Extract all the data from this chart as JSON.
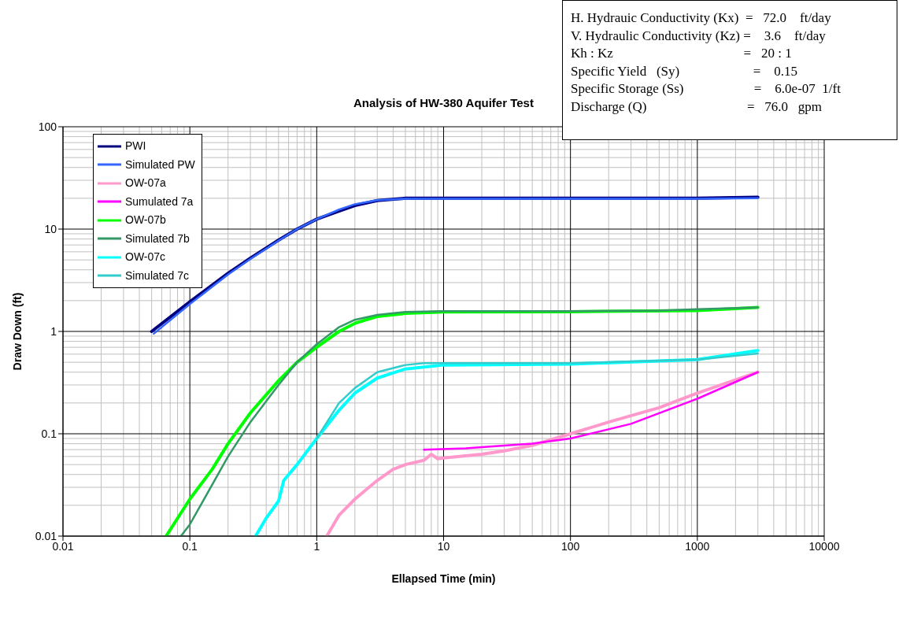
{
  "chart_data": {
    "type": "line",
    "title": "Analysis of HW-380 Aquifer Test",
    "xlabel": "Ellapsed Time (min)",
    "ylabel": "Draw Down (ft)",
    "log": "xy",
    "grid": true,
    "legend": "top left",
    "marker": "none",
    "line_style": "solid",
    "xlim": [
      0.01,
      10000
    ],
    "xticks": [
      0.01,
      0.1,
      1,
      10,
      100,
      1000,
      10000
    ],
    "ylim": [
      0.01,
      100
    ],
    "yticks": [
      0.01,
      0.1,
      1,
      10,
      100
    ],
    "annotations": [
      "H. Hydrauic Conductivity (Kx)  =   72.0    ft/day",
      "V. Hydraulic Conductivity (Kz) =    3.6    ft/day",
      "Kh : Kz                                       =   20 : 1",
      "Specific Yield   (Sy)                      =    0.15",
      "Specific Storage (Ss)                     =    6.0e-07  1/ft",
      "Discharge (Q)                              =   76.0   gpm"
    ],
    "series": [
      {
        "name": "PWI",
        "color": "#000080",
        "x": [
          0.05,
          0.1,
          0.2,
          0.3,
          0.5,
          0.7,
          1,
          1.5,
          2,
          3,
          5,
          100,
          1000,
          3000
        ],
        "values": [
          1.0,
          1.95,
          3.7,
          5.2,
          7.8,
          10,
          12.5,
          15,
          17,
          19,
          20,
          20,
          20,
          20.5
        ]
      },
      {
        "name": "Simulated PW",
        "color": "#3366ff",
        "x": [
          0.052,
          0.1,
          0.2,
          0.3,
          0.5,
          0.7,
          1,
          1.5,
          2,
          3,
          5,
          100,
          1000,
          3000
        ],
        "values": [
          0.95,
          1.85,
          3.6,
          5.1,
          7.7,
          10,
          12.5,
          15.5,
          17.5,
          19.2,
          19.8,
          19.8,
          19.8,
          20
        ]
      },
      {
        "name": "OW-07a",
        "color": "#ff99cc",
        "x": [
          1.2,
          1.5,
          2,
          3,
          4,
          5,
          7,
          8,
          9,
          10,
          20,
          30,
          50,
          100,
          200,
          500,
          1000,
          3000
        ],
        "values": [
          0.01,
          0.016,
          0.023,
          0.035,
          0.045,
          0.05,
          0.055,
          0.063,
          0.057,
          0.058,
          0.063,
          0.068,
          0.077,
          0.1,
          0.13,
          0.18,
          0.25,
          0.4
        ]
      },
      {
        "name": "Sumulated 7a",
        "color": "#ff00ff",
        "x": [
          7,
          15,
          20,
          50,
          100,
          300,
          1000,
          3000
        ],
        "values": [
          0.07,
          0.072,
          0.074,
          0.08,
          0.09,
          0.125,
          0.22,
          0.4
        ]
      },
      {
        "name": "OW-07b",
        "color": "#00ff00",
        "x": [
          0.065,
          0.1,
          0.15,
          0.2,
          0.3,
          0.5,
          0.7,
          1,
          1.5,
          2,
          3,
          5,
          10,
          100,
          1000,
          3000
        ],
        "values": [
          0.01,
          0.023,
          0.045,
          0.08,
          0.16,
          0.33,
          0.5,
          0.7,
          1.0,
          1.2,
          1.4,
          1.5,
          1.55,
          1.56,
          1.6,
          1.72
        ]
      },
      {
        "name": "Simulated 7b",
        "color": "#339966",
        "x": [
          0.085,
          0.1,
          0.2,
          0.3,
          0.5,
          0.7,
          1,
          1.5,
          2,
          3,
          5,
          10,
          100,
          500,
          1000,
          3000
        ],
        "values": [
          0.01,
          0.013,
          0.06,
          0.13,
          0.3,
          0.5,
          0.75,
          1.1,
          1.3,
          1.45,
          1.55,
          1.58,
          1.58,
          1.6,
          1.65,
          1.72
        ]
      },
      {
        "name": "OW-07c",
        "color": "#00ffff",
        "x": [
          0.33,
          0.4,
          0.5,
          0.55,
          0.7,
          1,
          1.5,
          2,
          3,
          5,
          10,
          100,
          1000,
          3000
        ],
        "values": [
          0.01,
          0.015,
          0.022,
          0.035,
          0.05,
          0.09,
          0.17,
          0.25,
          0.35,
          0.43,
          0.47,
          0.48,
          0.53,
          0.65
        ]
      },
      {
        "name": "Simulated 7c",
        "color": "#33cccc",
        "x": [
          1,
          1.5,
          2,
          3,
          5,
          7,
          100,
          1000,
          3000
        ],
        "values": [
          0.09,
          0.2,
          0.28,
          0.4,
          0.47,
          0.49,
          0.49,
          0.53,
          0.61
        ]
      }
    ]
  }
}
